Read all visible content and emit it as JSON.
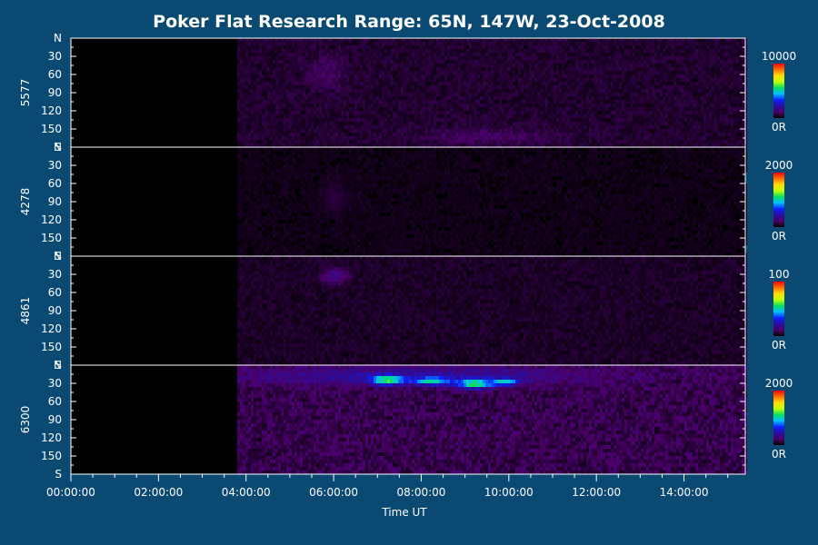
{
  "colors": {
    "background": "#0a4a72",
    "panel": "#000000",
    "axis": "#ffffff",
    "text": "#ffffff",
    "colormap": [
      "#000000",
      "#4b006b",
      "#2a0d9b",
      "#1020ff",
      "#00c0ff",
      "#00e060",
      "#c0ff00",
      "#ffe000",
      "#ff7000",
      "#ff0000"
    ]
  },
  "chart_data": {
    "type": "heatmap",
    "title": "Poker Flat Research Range: 65N, 147W, 23-Oct-2008",
    "xlabel": "Time UT",
    "x_range_hours": [
      0,
      15.4
    ],
    "x_ticks": [
      "00:00:00",
      "02:00:00",
      "04:00:00",
      "06:00:00",
      "08:00:00",
      "10:00:00",
      "12:00:00",
      "14:00:00"
    ],
    "x_tick_hours": [
      0,
      2,
      4,
      6,
      8,
      10,
      12,
      14
    ],
    "y_ticks": [
      "N",
      "30",
      "60",
      "90",
      "120",
      "150",
      "S"
    ],
    "y_tick_values": [
      0,
      30,
      60,
      90,
      120,
      150,
      180
    ],
    "panels": [
      {
        "wavelength": "5577",
        "colorbar": {
          "max_label": "10000",
          "min_label": "0R",
          "max": 10000
        },
        "data_start_hour": 3.8,
        "background_level": 0.06,
        "features": [
          {
            "hour": 5.8,
            "angle": 55,
            "dh": 0.5,
            "da": 30,
            "level": 0.05
          },
          {
            "hour": 9.5,
            "angle": 160,
            "dh": 1.5,
            "da": 12,
            "level": 0.06
          }
        ]
      },
      {
        "wavelength": "4278",
        "colorbar": {
          "max_label": "2000",
          "min_label": "0R",
          "max": 2000
        },
        "data_start_hour": 3.8,
        "background_level": 0.03,
        "features": [
          {
            "hour": 6.0,
            "angle": 80,
            "dh": 0.3,
            "da": 25,
            "level": 0.04
          }
        ]
      },
      {
        "wavelength": "4861",
        "colorbar": {
          "max_label": "100",
          "min_label": "0R",
          "max": 100
        },
        "data_start_hour": 3.8,
        "background_level": 0.05,
        "features": [
          {
            "hour": 6.0,
            "angle": 30,
            "dh": 0.3,
            "da": 12,
            "level": 0.12
          }
        ]
      },
      {
        "wavelength": "6300",
        "colorbar": {
          "max_label": "2000",
          "min_label": "0R",
          "max": 2000
        },
        "data_start_hour": 3.8,
        "background_level": 0.1,
        "features": [
          {
            "hour": 7.8,
            "angle": 15,
            "dh": 4.0,
            "da": 15,
            "level": 0.14
          },
          {
            "hour": 7.2,
            "angle": 22,
            "dh": 0.35,
            "da": 7,
            "level": 0.42
          },
          {
            "hour": 8.2,
            "angle": 24,
            "dh": 0.4,
            "da": 6,
            "level": 0.36
          },
          {
            "hour": 9.2,
            "angle": 28,
            "dh": 0.4,
            "da": 7,
            "level": 0.46
          },
          {
            "hour": 9.9,
            "angle": 25,
            "dh": 0.3,
            "da": 6,
            "level": 0.32
          }
        ]
      }
    ]
  }
}
